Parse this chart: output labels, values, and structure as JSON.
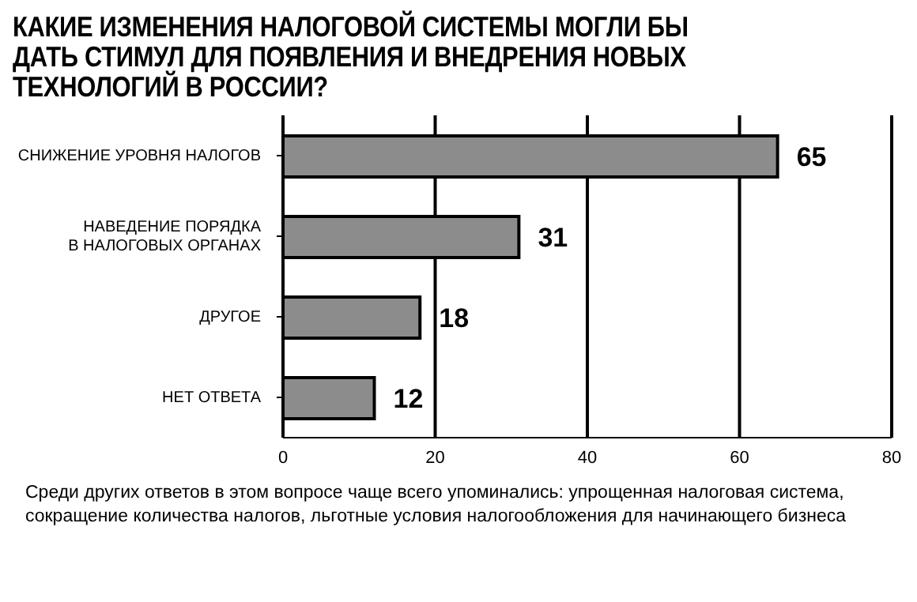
{
  "chart_data": {
    "type": "bar",
    "orientation": "horizontal",
    "title": "КАКИЕ ИЗМЕНЕНИЯ НАЛОГОВОЙ СИСТЕМЫ МОГЛИ БЫ ДАТЬ СТИМУЛ ДЛЯ ПОЯВЛЕНИЯ И ВНЕДРЕНИЯ НОВЫХ ТЕХНОЛОГИЙ В РОССИИ?",
    "categories": [
      "СНИЖЕНИЕ УРОВНЯ НАЛОГОВ",
      "НАВЕДЕНИЕ ПОРЯДКА\nВ НАЛОГОВЫХ ОРГАНАХ",
      "ДРУГОЕ",
      "НЕТ ОТВЕТА"
    ],
    "values": [
      65,
      31,
      18,
      12
    ],
    "color": "#8c8c8c",
    "xlim": [
      0,
      80
    ],
    "xticks": [
      0,
      20,
      40,
      60,
      80
    ],
    "grid": "x",
    "data_labels": true,
    "annotations": [
      "Среди других ответов в этом вопросе чаще всего упоминались: упрощенная налоговая система, сокращение количества налогов, льготные условия налогообложения для начинающего бизнеса"
    ]
  }
}
